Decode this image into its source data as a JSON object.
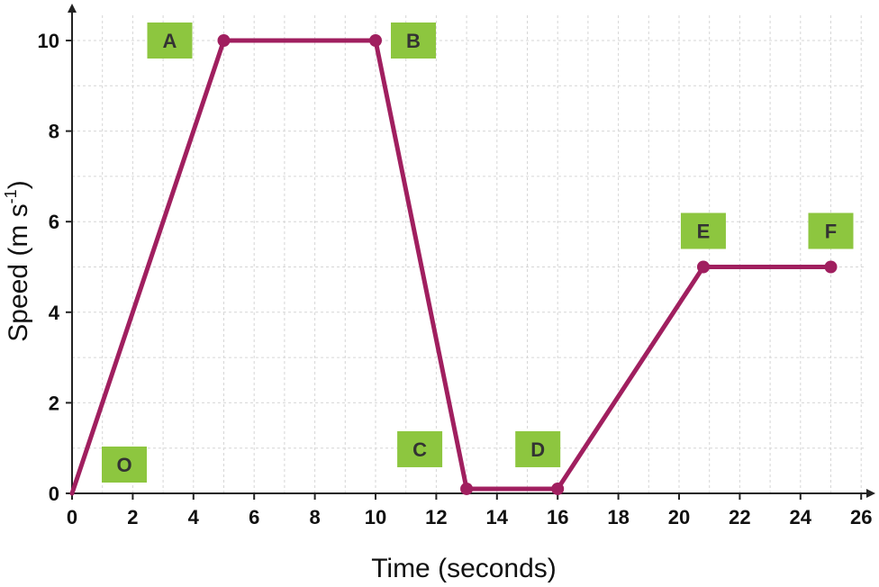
{
  "chart_data": {
    "type": "line",
    "xlabel": "Time (seconds)",
    "ylabel_main": "Speed (m s",
    "ylabel_sup": "-1",
    "ylabel_end": ")",
    "xlim": [
      0,
      26
    ],
    "ylim": [
      0,
      10
    ],
    "x_ticks": [
      0,
      2,
      4,
      6,
      8,
      10,
      12,
      14,
      16,
      18,
      20,
      22,
      24,
      26
    ],
    "y_ticks": [
      0,
      2,
      4,
      6,
      8,
      10
    ],
    "grid": true,
    "line_color": "#a01f5f",
    "label_box_color": "#8dc63f",
    "points": [
      {
        "label": "O",
        "x": 0,
        "y": 0
      },
      {
        "label": "A",
        "x": 5,
        "y": 10
      },
      {
        "label": "B",
        "x": 10,
        "y": 10
      },
      {
        "label": "C",
        "x": 13,
        "y": 0.1
      },
      {
        "label": "D",
        "x": 16,
        "y": 0.1
      },
      {
        "label": "E",
        "x": 20.8,
        "y": 5
      },
      {
        "label": "F",
        "x": 25,
        "y": 5
      }
    ]
  }
}
